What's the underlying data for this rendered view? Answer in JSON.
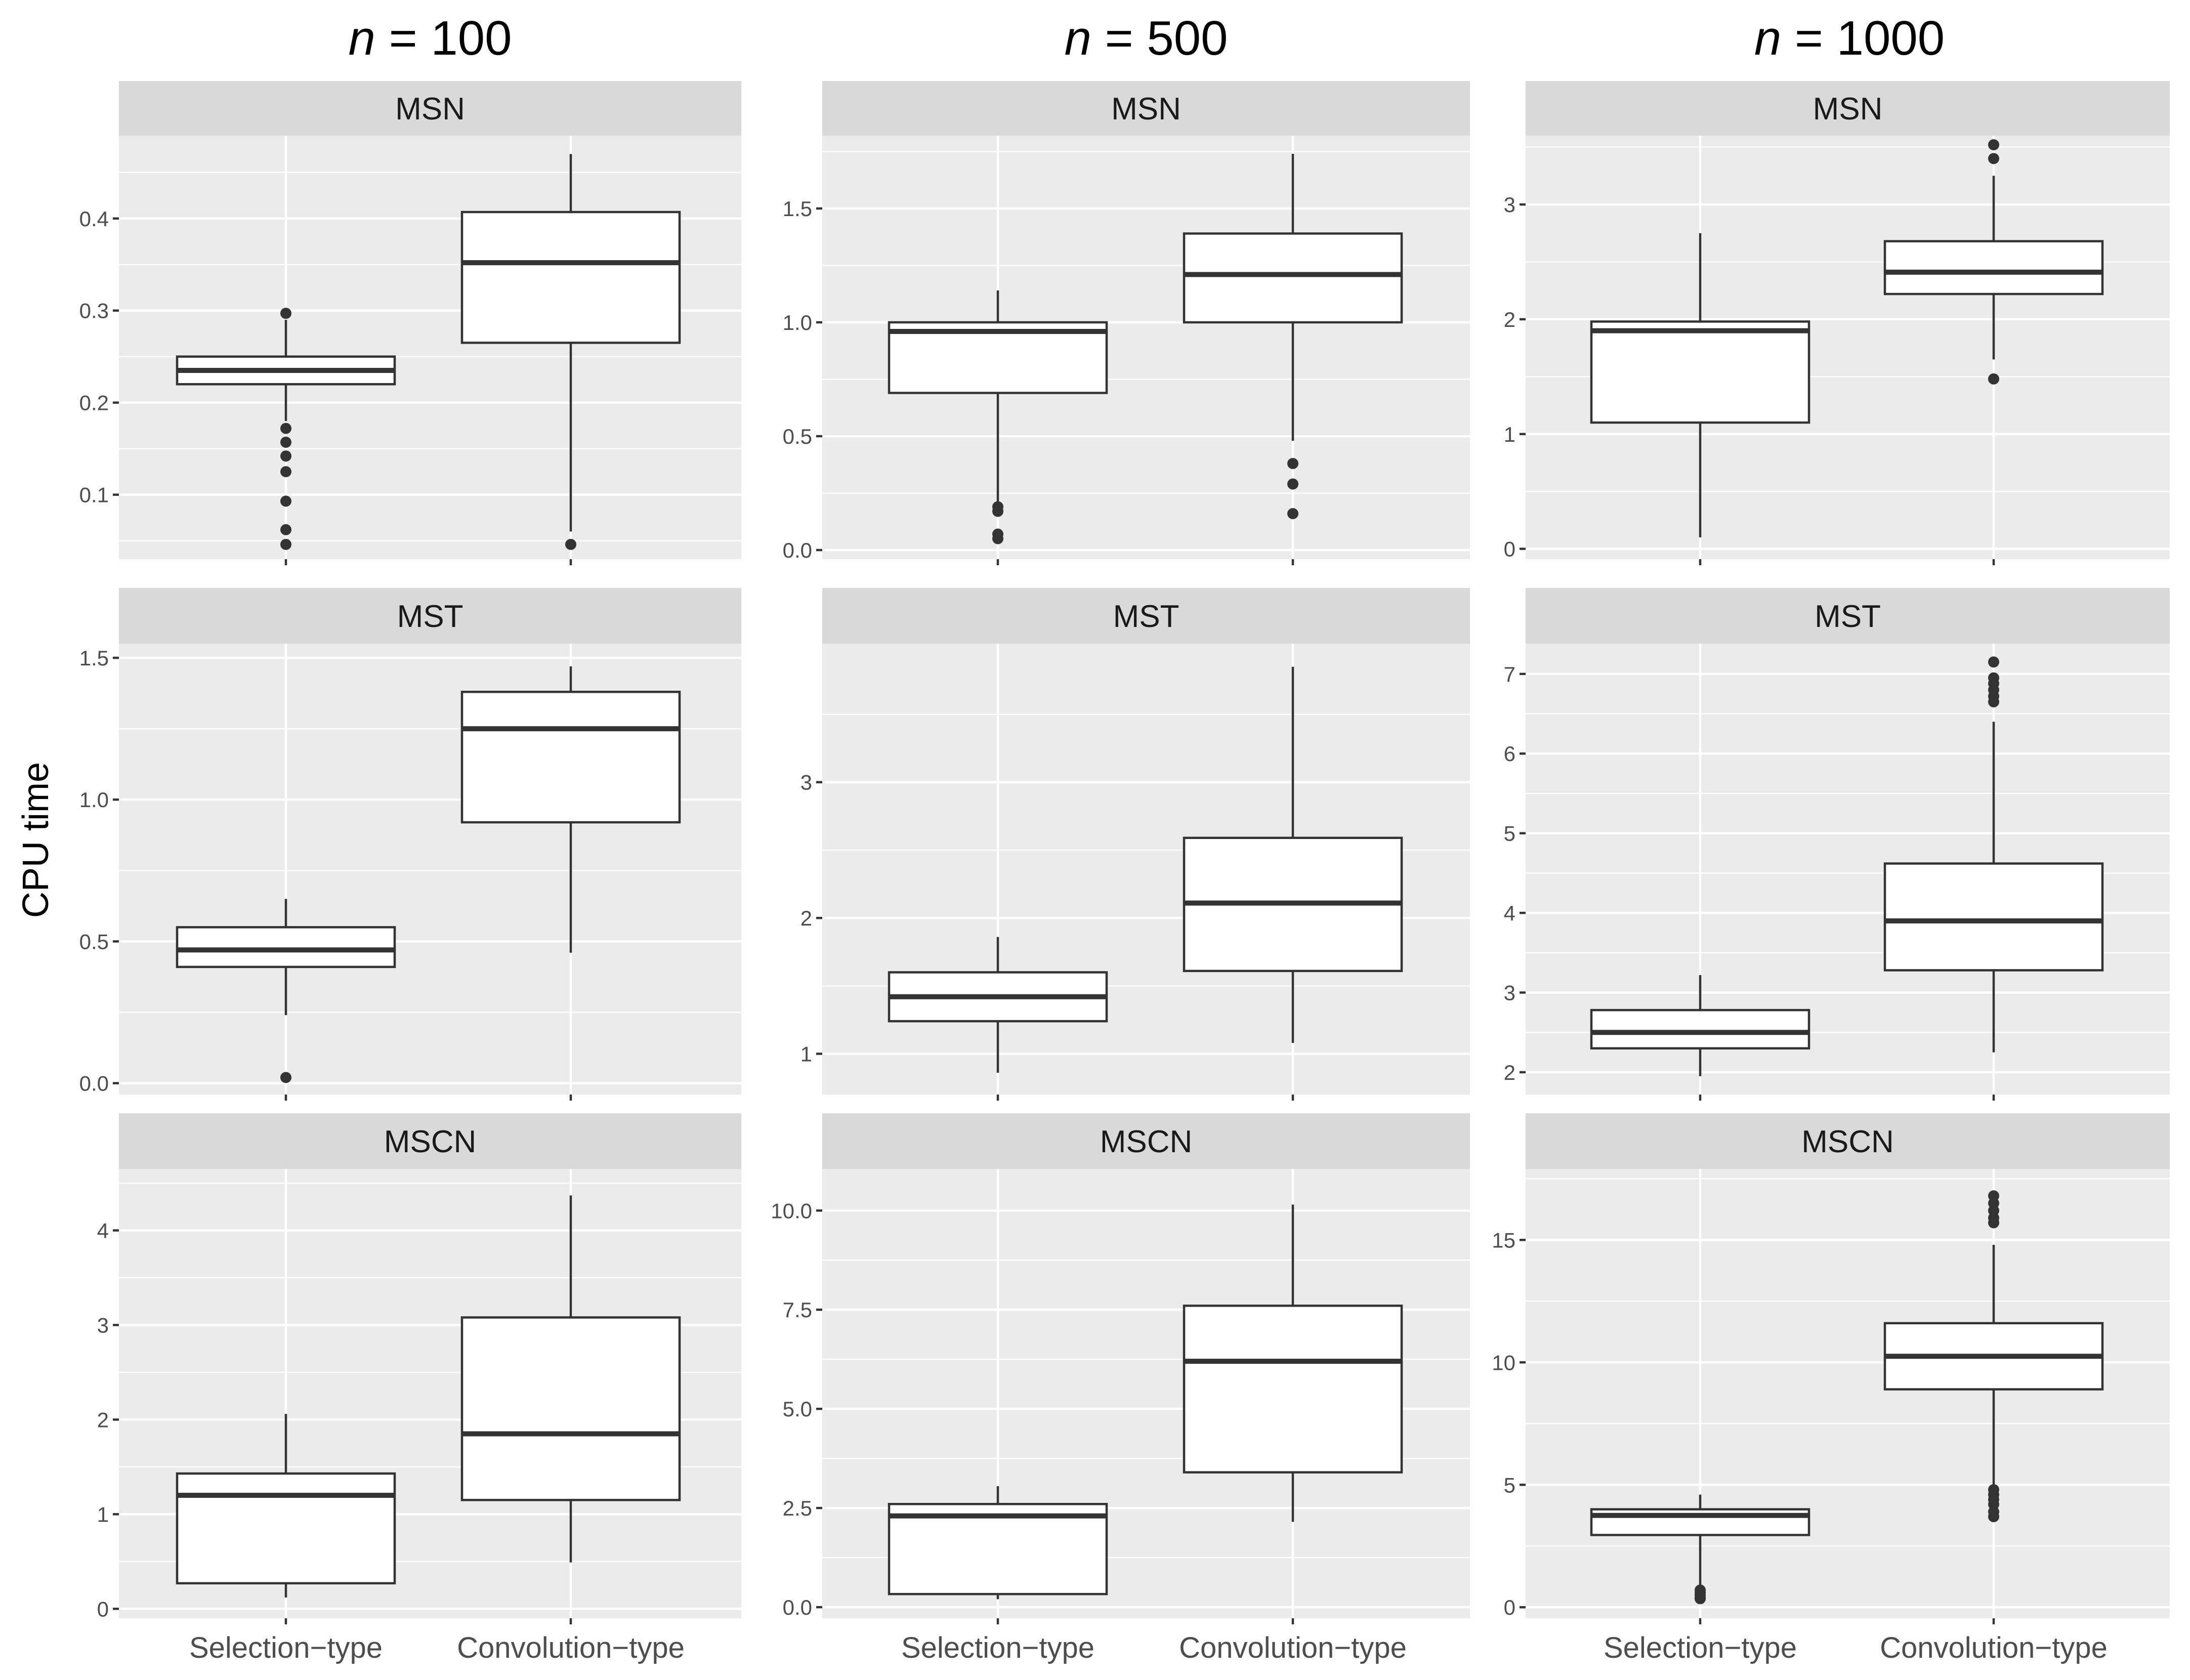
{
  "chart_data": {
    "type": "boxplot",
    "ylabel": "CPU time",
    "xlabel": "",
    "categories": [
      "Selection−type",
      "Convolution−type"
    ],
    "columns": [
      {
        "title_var": "n",
        "title_eq": " = ",
        "title_num": "100"
      },
      {
        "title_var": "n",
        "title_eq": " = ",
        "title_num": "500"
      },
      {
        "title_var": "n",
        "title_eq": " = ",
        "title_num": "1000"
      }
    ],
    "panels": [
      {
        "row": 0,
        "col": 0,
        "strip": "MSN",
        "ylim": [
          0.03,
          0.49
        ],
        "major_ticks": [
          0.1,
          0.2,
          0.3,
          0.4
        ],
        "tick_labels": [
          "0.1",
          "0.2",
          "0.3",
          "0.4"
        ],
        "minor_ticks": [
          0.05,
          0.15,
          0.25,
          0.35,
          0.45
        ],
        "boxes": [
          {
            "category": "Selection−type",
            "whisker_low": 0.18,
            "q1": 0.22,
            "median": 0.235,
            "q3": 0.25,
            "whisker_high": 0.29,
            "outliers": [
              0.297,
              0.172,
              0.157,
              0.142,
              0.125,
              0.093,
              0.062,
              0.046
            ]
          },
          {
            "category": "Convolution−type",
            "whisker_low": 0.06,
            "q1": 0.265,
            "median": 0.352,
            "q3": 0.407,
            "whisker_high": 0.47,
            "outliers": [
              0.046
            ]
          }
        ]
      },
      {
        "row": 0,
        "col": 1,
        "strip": "MSN",
        "ylim": [
          -0.04,
          1.82
        ],
        "major_ticks": [
          0.0,
          0.5,
          1.0,
          1.5
        ],
        "tick_labels": [
          "0.0",
          "0.5",
          "1.0",
          "1.5"
        ],
        "minor_ticks": [
          0.25,
          0.75,
          1.25,
          1.75
        ],
        "boxes": [
          {
            "category": "Selection−type",
            "whisker_low": 0.2,
            "q1": 0.69,
            "median": 0.96,
            "q3": 1.0,
            "whisker_high": 1.14,
            "outliers": [
              0.19,
              0.17,
              0.07,
              0.05
            ]
          },
          {
            "category": "Convolution−type",
            "whisker_low": 0.48,
            "q1": 1.0,
            "median": 1.21,
            "q3": 1.39,
            "whisker_high": 1.74,
            "outliers": [
              0.38,
              0.29,
              0.16
            ]
          }
        ]
      },
      {
        "row": 0,
        "col": 2,
        "strip": "MSN",
        "ylim": [
          -0.09,
          3.6
        ],
        "major_ticks": [
          0,
          1,
          2,
          3
        ],
        "tick_labels": [
          "0",
          "1",
          "2",
          "3"
        ],
        "minor_ticks": [
          0.5,
          1.5,
          2.5,
          3.5
        ],
        "boxes": [
          {
            "category": "Selection−type",
            "whisker_low": 0.1,
            "q1": 1.1,
            "median": 1.9,
            "q3": 1.98,
            "whisker_high": 2.75,
            "outliers": []
          },
          {
            "category": "Convolution−type",
            "whisker_low": 1.65,
            "q1": 2.22,
            "median": 2.41,
            "q3": 2.68,
            "whisker_high": 3.25,
            "outliers": [
              3.52,
              3.4,
              1.48
            ]
          }
        ]
      },
      {
        "row": 1,
        "col": 0,
        "strip": "MST",
        "ylim": [
          -0.04,
          1.55
        ],
        "major_ticks": [
          0.0,
          0.5,
          1.0,
          1.5
        ],
        "tick_labels": [
          "0.0",
          "0.5",
          "1.0",
          "1.5"
        ],
        "minor_ticks": [
          0.25,
          0.75,
          1.25
        ],
        "boxes": [
          {
            "category": "Selection−type",
            "whisker_low": 0.24,
            "q1": 0.41,
            "median": 0.47,
            "q3": 0.55,
            "whisker_high": 0.65,
            "outliers": [
              0.02
            ]
          },
          {
            "category": "Convolution−type",
            "whisker_low": 0.46,
            "q1": 0.92,
            "median": 1.25,
            "q3": 1.38,
            "whisker_high": 1.47,
            "outliers": []
          }
        ]
      },
      {
        "row": 1,
        "col": 1,
        "strip": "MST",
        "ylim": [
          0.7,
          4.02
        ],
        "major_ticks": [
          1,
          2,
          3
        ],
        "tick_labels": [
          "1",
          "2",
          "3"
        ],
        "minor_ticks": [
          1.5,
          2.5,
          3.5
        ],
        "boxes": [
          {
            "category": "Selection−type",
            "whisker_low": 0.86,
            "q1": 1.24,
            "median": 1.42,
            "q3": 1.6,
            "whisker_high": 1.86,
            "outliers": []
          },
          {
            "category": "Convolution−type",
            "whisker_low": 1.08,
            "q1": 1.61,
            "median": 2.11,
            "q3": 2.59,
            "whisker_high": 3.85,
            "outliers": []
          }
        ]
      },
      {
        "row": 1,
        "col": 2,
        "strip": "MST",
        "ylim": [
          1.72,
          7.38
        ],
        "major_ticks": [
          2,
          3,
          4,
          5,
          6,
          7
        ],
        "tick_labels": [
          "2",
          "3",
          "4",
          "5",
          "6",
          "7"
        ],
        "minor_ticks": [
          2.5,
          3.5,
          4.5,
          5.5,
          6.5
        ],
        "boxes": [
          {
            "category": "Selection−type",
            "whisker_low": 1.95,
            "q1": 2.3,
            "median": 2.5,
            "q3": 2.78,
            "whisker_high": 3.22,
            "outliers": []
          },
          {
            "category": "Convolution−type",
            "whisker_low": 2.25,
            "q1": 3.28,
            "median": 3.9,
            "q3": 4.62,
            "whisker_high": 6.4,
            "outliers": [
              7.15,
              6.95,
              6.88,
              6.8,
              6.72,
              6.65
            ]
          }
        ]
      },
      {
        "row": 2,
        "col": 0,
        "strip": "MSCN",
        "ylim": [
          -0.1,
          4.65
        ],
        "major_ticks": [
          0,
          1,
          2,
          3,
          4
        ],
        "tick_labels": [
          "0",
          "1",
          "2",
          "3",
          "4"
        ],
        "minor_ticks": [
          0.5,
          1.5,
          2.5,
          3.5,
          4.5
        ],
        "boxes": [
          {
            "category": "Selection−type",
            "whisker_low": 0.12,
            "q1": 0.27,
            "median": 1.2,
            "q3": 1.43,
            "whisker_high": 2.06,
            "outliers": []
          },
          {
            "category": "Convolution−type",
            "whisker_low": 0.49,
            "q1": 1.15,
            "median": 1.85,
            "q3": 3.08,
            "whisker_high": 4.37,
            "outliers": []
          }
        ]
      },
      {
        "row": 2,
        "col": 1,
        "strip": "MSCN",
        "ylim": [
          -0.28,
          11.05
        ],
        "major_ticks": [
          0.0,
          2.5,
          5.0,
          7.5,
          10.0
        ],
        "tick_labels": [
          "0.0",
          "2.5",
          "5.0",
          "7.5",
          "10.0"
        ],
        "minor_ticks": [
          1.25,
          3.75,
          6.25,
          8.75
        ],
        "boxes": [
          {
            "category": "Selection−type",
            "whisker_low": 0.2,
            "q1": 0.33,
            "median": 2.3,
            "q3": 2.6,
            "whisker_high": 3.05,
            "outliers": []
          },
          {
            "category": "Convolution−type",
            "whisker_low": 2.15,
            "q1": 3.4,
            "median": 6.2,
            "q3": 7.6,
            "whisker_high": 10.15,
            "outliers": []
          }
        ]
      },
      {
        "row": 2,
        "col": 2,
        "strip": "MSCN",
        "ylim": [
          -0.45,
          17.9
        ],
        "major_ticks": [
          0,
          5,
          10,
          15
        ],
        "tick_labels": [
          "0",
          "5",
          "10",
          "15"
        ],
        "minor_ticks": [
          2.5,
          7.5,
          12.5,
          17.5
        ],
        "boxes": [
          {
            "category": "Selection−type",
            "whisker_low": 0.9,
            "q1": 2.95,
            "median": 3.75,
            "q3": 4.0,
            "whisker_high": 4.6,
            "outliers": [
              0.7,
              0.6,
              0.5,
              0.4,
              0.35
            ]
          },
          {
            "category": "Convolution−type",
            "whisker_low": 5.0,
            "q1": 8.9,
            "median": 10.25,
            "q3": 11.6,
            "whisker_high": 14.8,
            "outliers": [
              16.8,
              16.5,
              16.2,
              15.9,
              15.7,
              4.8,
              4.6,
              4.4,
              4.2,
              3.9,
              3.7
            ]
          }
        ]
      }
    ]
  }
}
